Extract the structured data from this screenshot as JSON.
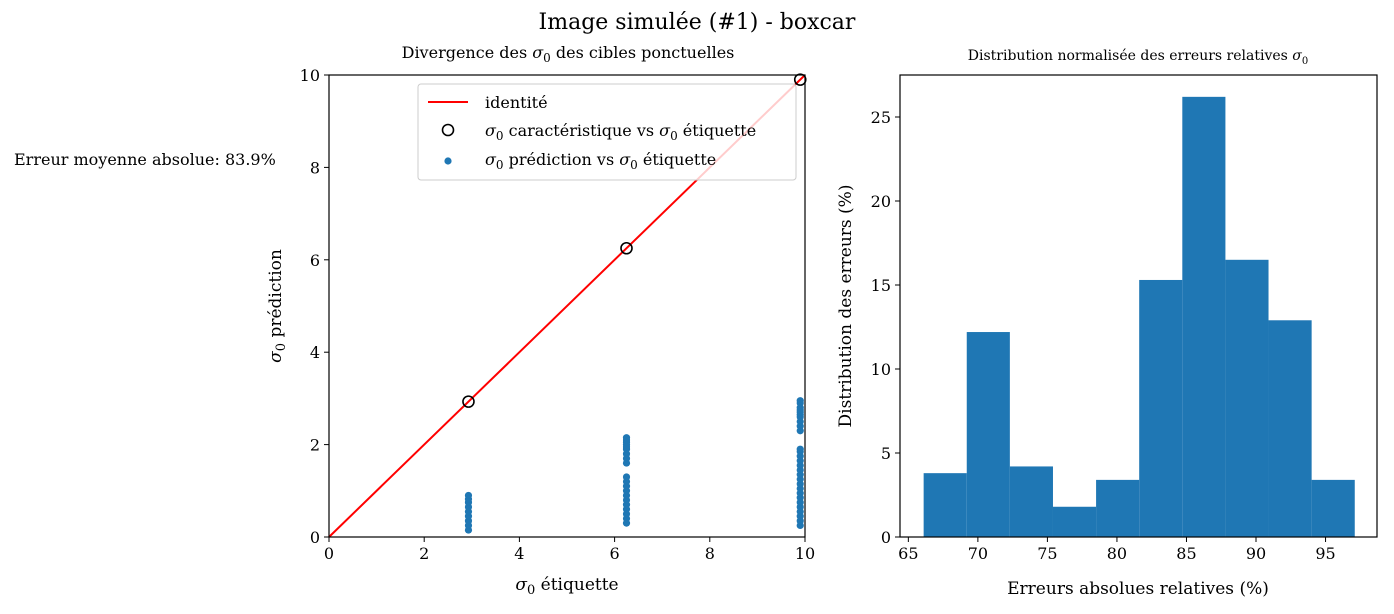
{
  "figure": {
    "suptitle": "Image simulée (#1) - boxcar",
    "mae_text": "Erreur moyenne absolue: 83.9%"
  },
  "chart_data": [
    {
      "type": "scatter",
      "title": "Divergence des σ0 des cibles ponctuelles",
      "xlabel": "σ0 étiquette",
      "ylabel": "σ0 prédiction",
      "xlim": [
        0,
        10
      ],
      "ylim": [
        0,
        10
      ],
      "xticks": [
        0,
        2,
        4,
        6,
        8,
        10
      ],
      "yticks": [
        0,
        2,
        4,
        6,
        8,
        10
      ],
      "grid": false,
      "legend_position": "top-right",
      "legend": [
        {
          "label": "identité",
          "kind": "line",
          "color": "#ff0000"
        },
        {
          "label": "σ0 caractéristique vs σ0 étiquette",
          "kind": "open-circle",
          "color": "#000000"
        },
        {
          "label": "σ0 prédiction vs σ0 étiquette",
          "kind": "dot",
          "color": "#1f77b4"
        }
      ],
      "series": [
        {
          "name": "identité",
          "type": "line",
          "color": "#ff0000",
          "x": [
            0,
            10
          ],
          "y": [
            0,
            10
          ]
        },
        {
          "name": "σ0 caractéristique vs σ0 étiquette",
          "type": "scatter",
          "color": "#000000",
          "x": [
            2.93,
            6.25,
            9.9
          ],
          "y": [
            2.93,
            6.25,
            9.9
          ]
        },
        {
          "name": "σ0 prédiction vs σ0 étiquette",
          "type": "scatter",
          "color": "#1f77b4",
          "x": [
            2.93,
            2.93,
            2.93,
            2.93,
            2.93,
            2.93,
            2.93,
            2.93,
            2.93,
            6.25,
            6.25,
            6.25,
            6.25,
            6.25,
            6.25,
            6.25,
            6.25,
            6.25,
            6.25,
            6.25,
            6.25,
            6.25,
            6.25,
            6.25,
            6.25,
            6.25,
            6.25,
            6.25,
            6.25,
            9.9,
            9.9,
            9.9,
            9.9,
            9.9,
            9.9,
            9.9,
            9.9,
            9.9,
            9.9,
            9.9,
            9.9,
            9.9,
            9.9,
            9.9,
            9.9,
            9.9,
            9.9,
            9.9,
            9.9,
            9.9,
            9.9,
            9.9,
            9.9,
            9.9,
            9.9,
            9.9,
            9.9
          ],
          "y": [
            0.15,
            0.25,
            0.35,
            0.45,
            0.55,
            0.65,
            0.75,
            0.82,
            0.9,
            0.3,
            0.4,
            0.5,
            0.6,
            0.7,
            0.8,
            0.9,
            1.0,
            1.1,
            1.2,
            1.3,
            1.6,
            1.7,
            1.8,
            1.9,
            1.95,
            2.0,
            2.05,
            2.1,
            2.15,
            0.25,
            0.35,
            0.45,
            0.55,
            0.65,
            0.75,
            0.85,
            0.95,
            1.05,
            1.15,
            1.25,
            1.35,
            1.45,
            1.55,
            1.65,
            1.75,
            1.85,
            1.9,
            2.3,
            2.4,
            2.5,
            2.6,
            2.65,
            2.7,
            2.75,
            2.8,
            2.9,
            2.95
          ]
        }
      ]
    },
    {
      "type": "bar",
      "subtype": "histogram",
      "title": "Distribution normalisée des erreurs relatives σ0",
      "xlabel": "Erreurs absolues relatives (%)",
      "ylabel": "Distribution des erreurs (%)",
      "xlim": [
        64.4,
        98.7
      ],
      "ylim": [
        0,
        27.5
      ],
      "xticks": [
        65,
        70,
        75,
        80,
        85,
        90,
        95
      ],
      "yticks": [
        0,
        5,
        10,
        15,
        20,
        25
      ],
      "color": "#1f77b4",
      "bin_edges": [
        66.1,
        69.2,
        72.3,
        75.4,
        78.5,
        81.6,
        84.7,
        87.8,
        90.9,
        94.0,
        97.1
      ],
      "values": [
        3.8,
        12.2,
        4.2,
        1.8,
        3.4,
        15.3,
        26.2,
        16.5,
        12.9,
        3.4
      ]
    }
  ]
}
